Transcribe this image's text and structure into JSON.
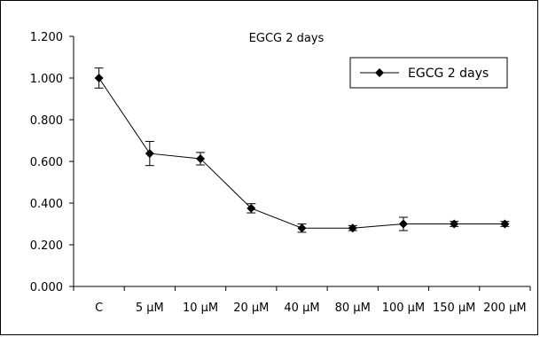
{
  "chart_data": {
    "type": "line",
    "title": "EGCG 2 days",
    "xlabel": "",
    "ylabel": "",
    "categories": [
      "C",
      "5 μM",
      "10 μM",
      "20 μM",
      "40 μM",
      "80 μM",
      "100 μM",
      "150 μM",
      "200 μM"
    ],
    "ylim": [
      0,
      1.2
    ],
    "yticks": [
      "0.000",
      "0.200",
      "0.400",
      "0.600",
      "0.800",
      "1.000",
      "1.200"
    ],
    "grid": false,
    "legend_position": "top-right",
    "series": [
      {
        "name": "EGCG 2 days",
        "color": "#000000",
        "marker": "diamond",
        "values": [
          1.0,
          0.638,
          0.613,
          0.375,
          0.28,
          0.28,
          0.3,
          0.3,
          0.3
        ],
        "errors": [
          0.048,
          0.058,
          0.03,
          0.022,
          0.02,
          0.012,
          0.032,
          0.012,
          0.012
        ]
      }
    ]
  }
}
